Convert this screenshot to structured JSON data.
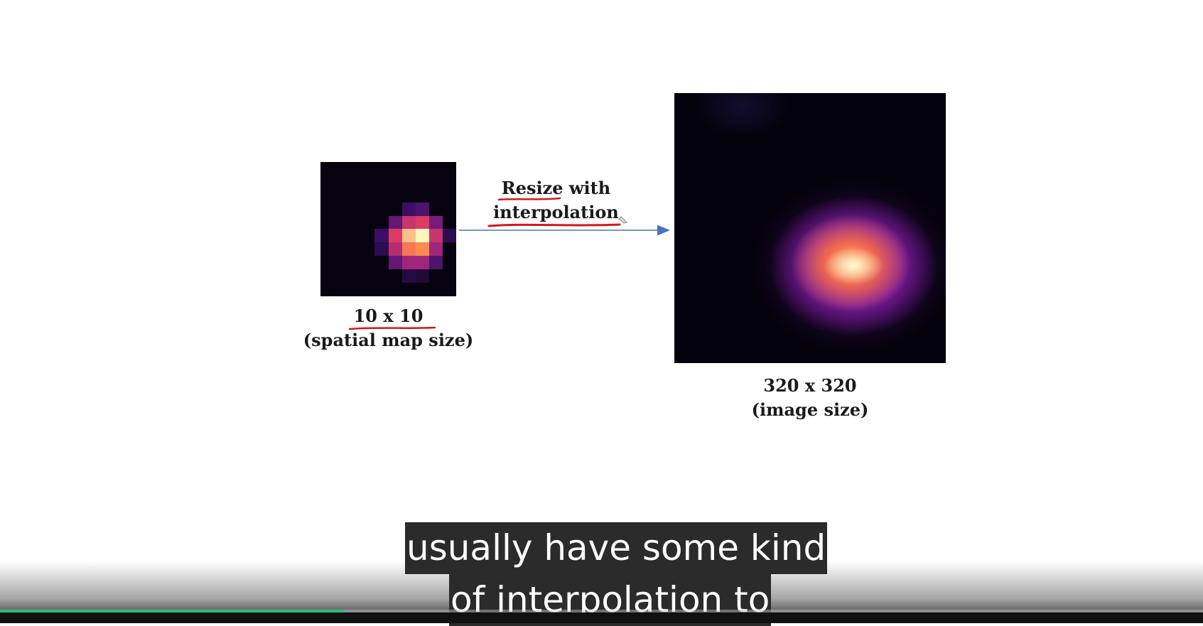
{
  "slide": {
    "arrow_label_line1": "Resize with",
    "arrow_label_line2": "interpolation",
    "small_label_line1": "10 x 10",
    "small_label_line2": "(spatial map size)",
    "big_label_line1": "320 x 320",
    "big_label_line2": "(image size)",
    "arrow_color": "#4a72c4",
    "annotation_color": "#d11a1a"
  },
  "small_heatmap": {
    "rows": 10,
    "cols": 10,
    "hot_cells": [
      {
        "r": 3,
        "c": 6,
        "v": 0.2
      },
      {
        "r": 3,
        "c": 7,
        "v": 0.25
      },
      {
        "r": 4,
        "c": 5,
        "v": 0.3
      },
      {
        "r": 4,
        "c": 6,
        "v": 0.55
      },
      {
        "r": 4,
        "c": 7,
        "v": 0.6
      },
      {
        "r": 4,
        "c": 8,
        "v": 0.35
      },
      {
        "r": 5,
        "c": 4,
        "v": 0.2
      },
      {
        "r": 5,
        "c": 5,
        "v": 0.6
      },
      {
        "r": 5,
        "c": 6,
        "v": 0.9
      },
      {
        "r": 5,
        "c": 7,
        "v": 1.0
      },
      {
        "r": 5,
        "c": 8,
        "v": 0.55
      },
      {
        "r": 5,
        "c": 9,
        "v": 0.15
      },
      {
        "r": 6,
        "c": 4,
        "v": 0.15
      },
      {
        "r": 6,
        "c": 5,
        "v": 0.5
      },
      {
        "r": 6,
        "c": 6,
        "v": 0.75
      },
      {
        "r": 6,
        "c": 7,
        "v": 0.8
      },
      {
        "r": 6,
        "c": 8,
        "v": 0.45
      },
      {
        "r": 7,
        "c": 5,
        "v": 0.3
      },
      {
        "r": 7,
        "c": 6,
        "v": 0.45
      },
      {
        "r": 7,
        "c": 7,
        "v": 0.45
      },
      {
        "r": 7,
        "c": 8,
        "v": 0.25
      },
      {
        "r": 8,
        "c": 6,
        "v": 0.12
      },
      {
        "r": 8,
        "c": 7,
        "v": 0.1
      }
    ]
  },
  "subtitles": {
    "line1": "usually have some kind",
    "line2": "of interpolation to"
  },
  "player": {
    "progress_fraction": 0.285,
    "progress_color": "#2bbf7a"
  }
}
